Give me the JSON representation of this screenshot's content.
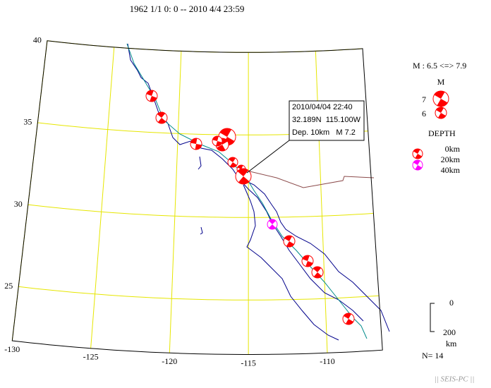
{
  "header": {
    "title": "1962 1/1 0: 0 -- 2010 4/4 23:59"
  },
  "map": {
    "lat_range": [
      21.7,
      40
    ],
    "lon_range": [
      -130,
      -106.5
    ],
    "lat_ticks": [
      25,
      30,
      35,
      40
    ],
    "lon_ticks": [
      -130,
      -125,
      -120,
      -115,
      -110
    ]
  },
  "info_box": {
    "time": "2010/04/04 22:40",
    "location": "32.189N  115.100W",
    "depth_mag": "Dep. 10km   M 7.2"
  },
  "legend": {
    "magnitude_range": "M : 6.5 <=> 7.9",
    "magnitude_title": "M",
    "magnitude_labels": [
      "7",
      "6"
    ],
    "depth_title": "DEPTH",
    "depth_labels": [
      "0km",
      "20km",
      "40km"
    ]
  },
  "scale": {
    "labels": [
      "0",
      "200"
    ],
    "unit": "km"
  },
  "count": "N= 14",
  "footer": "|| SEIS-PC ||"
}
